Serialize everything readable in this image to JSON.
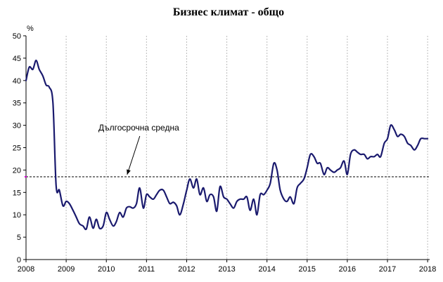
{
  "chart_data": {
    "type": "line",
    "title": "Бизнес климат - общо",
    "ylabel": "%",
    "xlabel": "",
    "ylim": [
      0,
      50
    ],
    "yticks": [
      0,
      5,
      10,
      15,
      20,
      25,
      30,
      35,
      40,
      45,
      50
    ],
    "xlim": [
      2008,
      2018.05
    ],
    "xticks": [
      "2008",
      "2009",
      "2010",
      "2011",
      "2012",
      "2013",
      "2014",
      "2015",
      "2016",
      "2017",
      "2018"
    ],
    "vertical_grid": true,
    "horizontal_grid": false,
    "colors": {
      "series": "#1a1a6e",
      "average": "#000000",
      "grid": "#bbbbbb"
    },
    "average": {
      "value": 18.5,
      "label": "Дългосрочна средна",
      "arrow_target_x": 2010.5
    },
    "series": [
      {
        "x": [
          2008.0,
          2008.08,
          2008.17,
          2008.25,
          2008.33,
          2008.42,
          2008.5,
          2008.58,
          2008.67,
          2008.75,
          2008.83,
          2008.92,
          2009.0,
          2009.08,
          2009.17,
          2009.25,
          2009.33,
          2009.42,
          2009.5,
          2009.58,
          2009.67,
          2009.75,
          2009.83,
          2009.92,
          2010.0,
          2010.08,
          2010.17,
          2010.25,
          2010.33,
          2010.42,
          2010.5,
          2010.58,
          2010.67,
          2010.75,
          2010.83,
          2010.92,
          2011.0,
          2011.08,
          2011.17,
          2011.25,
          2011.33,
          2011.42,
          2011.5,
          2011.58,
          2011.67,
          2011.75,
          2011.83,
          2011.92,
          2012.0,
          2012.08,
          2012.17,
          2012.25,
          2012.33,
          2012.42,
          2012.5,
          2012.58,
          2012.67,
          2012.75,
          2012.83,
          2012.92,
          2013.0,
          2013.08,
          2013.17,
          2013.25,
          2013.33,
          2013.42,
          2013.5,
          2013.58,
          2013.67,
          2013.75,
          2013.83,
          2013.92,
          2014.0,
          2014.08,
          2014.17,
          2014.25,
          2014.33,
          2014.42,
          2014.5,
          2014.58,
          2014.67,
          2014.75,
          2014.83,
          2014.92,
          2015.0,
          2015.08,
          2015.17,
          2015.25,
          2015.33,
          2015.42,
          2015.5,
          2015.58,
          2015.67,
          2015.75,
          2015.83,
          2015.92,
          2016.0,
          2016.08,
          2016.17,
          2016.25,
          2016.33,
          2016.42,
          2016.5,
          2016.58,
          2016.67,
          2016.75,
          2016.83,
          2016.92,
          2017.0,
          2017.08,
          2017.17,
          2017.25,
          2017.33,
          2017.42,
          2017.5,
          2017.58,
          2017.67,
          2017.75,
          2017.83,
          2017.92,
          2018.0
        ],
        "y": [
          40.0,
          43.0,
          42.5,
          44.5,
          42.5,
          41.0,
          39.0,
          38.5,
          35.0,
          16.5,
          15.5,
          12.0,
          13.0,
          12.5,
          11.0,
          9.5,
          8.0,
          7.5,
          6.8,
          9.5,
          7.0,
          9.0,
          7.0,
          7.5,
          10.5,
          9.0,
          7.5,
          8.5,
          10.5,
          9.5,
          11.5,
          11.8,
          11.5,
          12.5,
          16.0,
          11.5,
          14.5,
          14.0,
          13.5,
          14.5,
          15.5,
          15.5,
          14.0,
          12.5,
          12.8,
          12.0,
          10.0,
          12.5,
          15.5,
          18.0,
          16.0,
          18.0,
          14.5,
          16.0,
          13.0,
          14.5,
          14.0,
          10.8,
          16.3,
          14.0,
          13.5,
          12.5,
          11.5,
          13.0,
          13.5,
          13.5,
          14.0,
          11.0,
          13.5,
          10.0,
          14.5,
          14.5,
          15.5,
          17.0,
          21.5,
          20.0,
          15.5,
          13.5,
          13.0,
          14.0,
          12.5,
          16.0,
          17.0,
          18.0,
          20.5,
          23.5,
          23.0,
          21.5,
          21.5,
          19.0,
          20.5,
          20.0,
          19.5,
          20.0,
          20.5,
          22.0,
          19.0,
          23.5,
          24.5,
          24.0,
          23.5,
          23.5,
          22.5,
          23.0,
          23.0,
          23.5,
          23.0,
          26.0,
          27.0,
          30.0,
          29.0,
          27.5,
          28.0,
          27.5,
          26.0,
          25.5,
          24.5,
          25.5,
          27.0,
          27.0,
          27.0
        ]
      }
    ]
  }
}
